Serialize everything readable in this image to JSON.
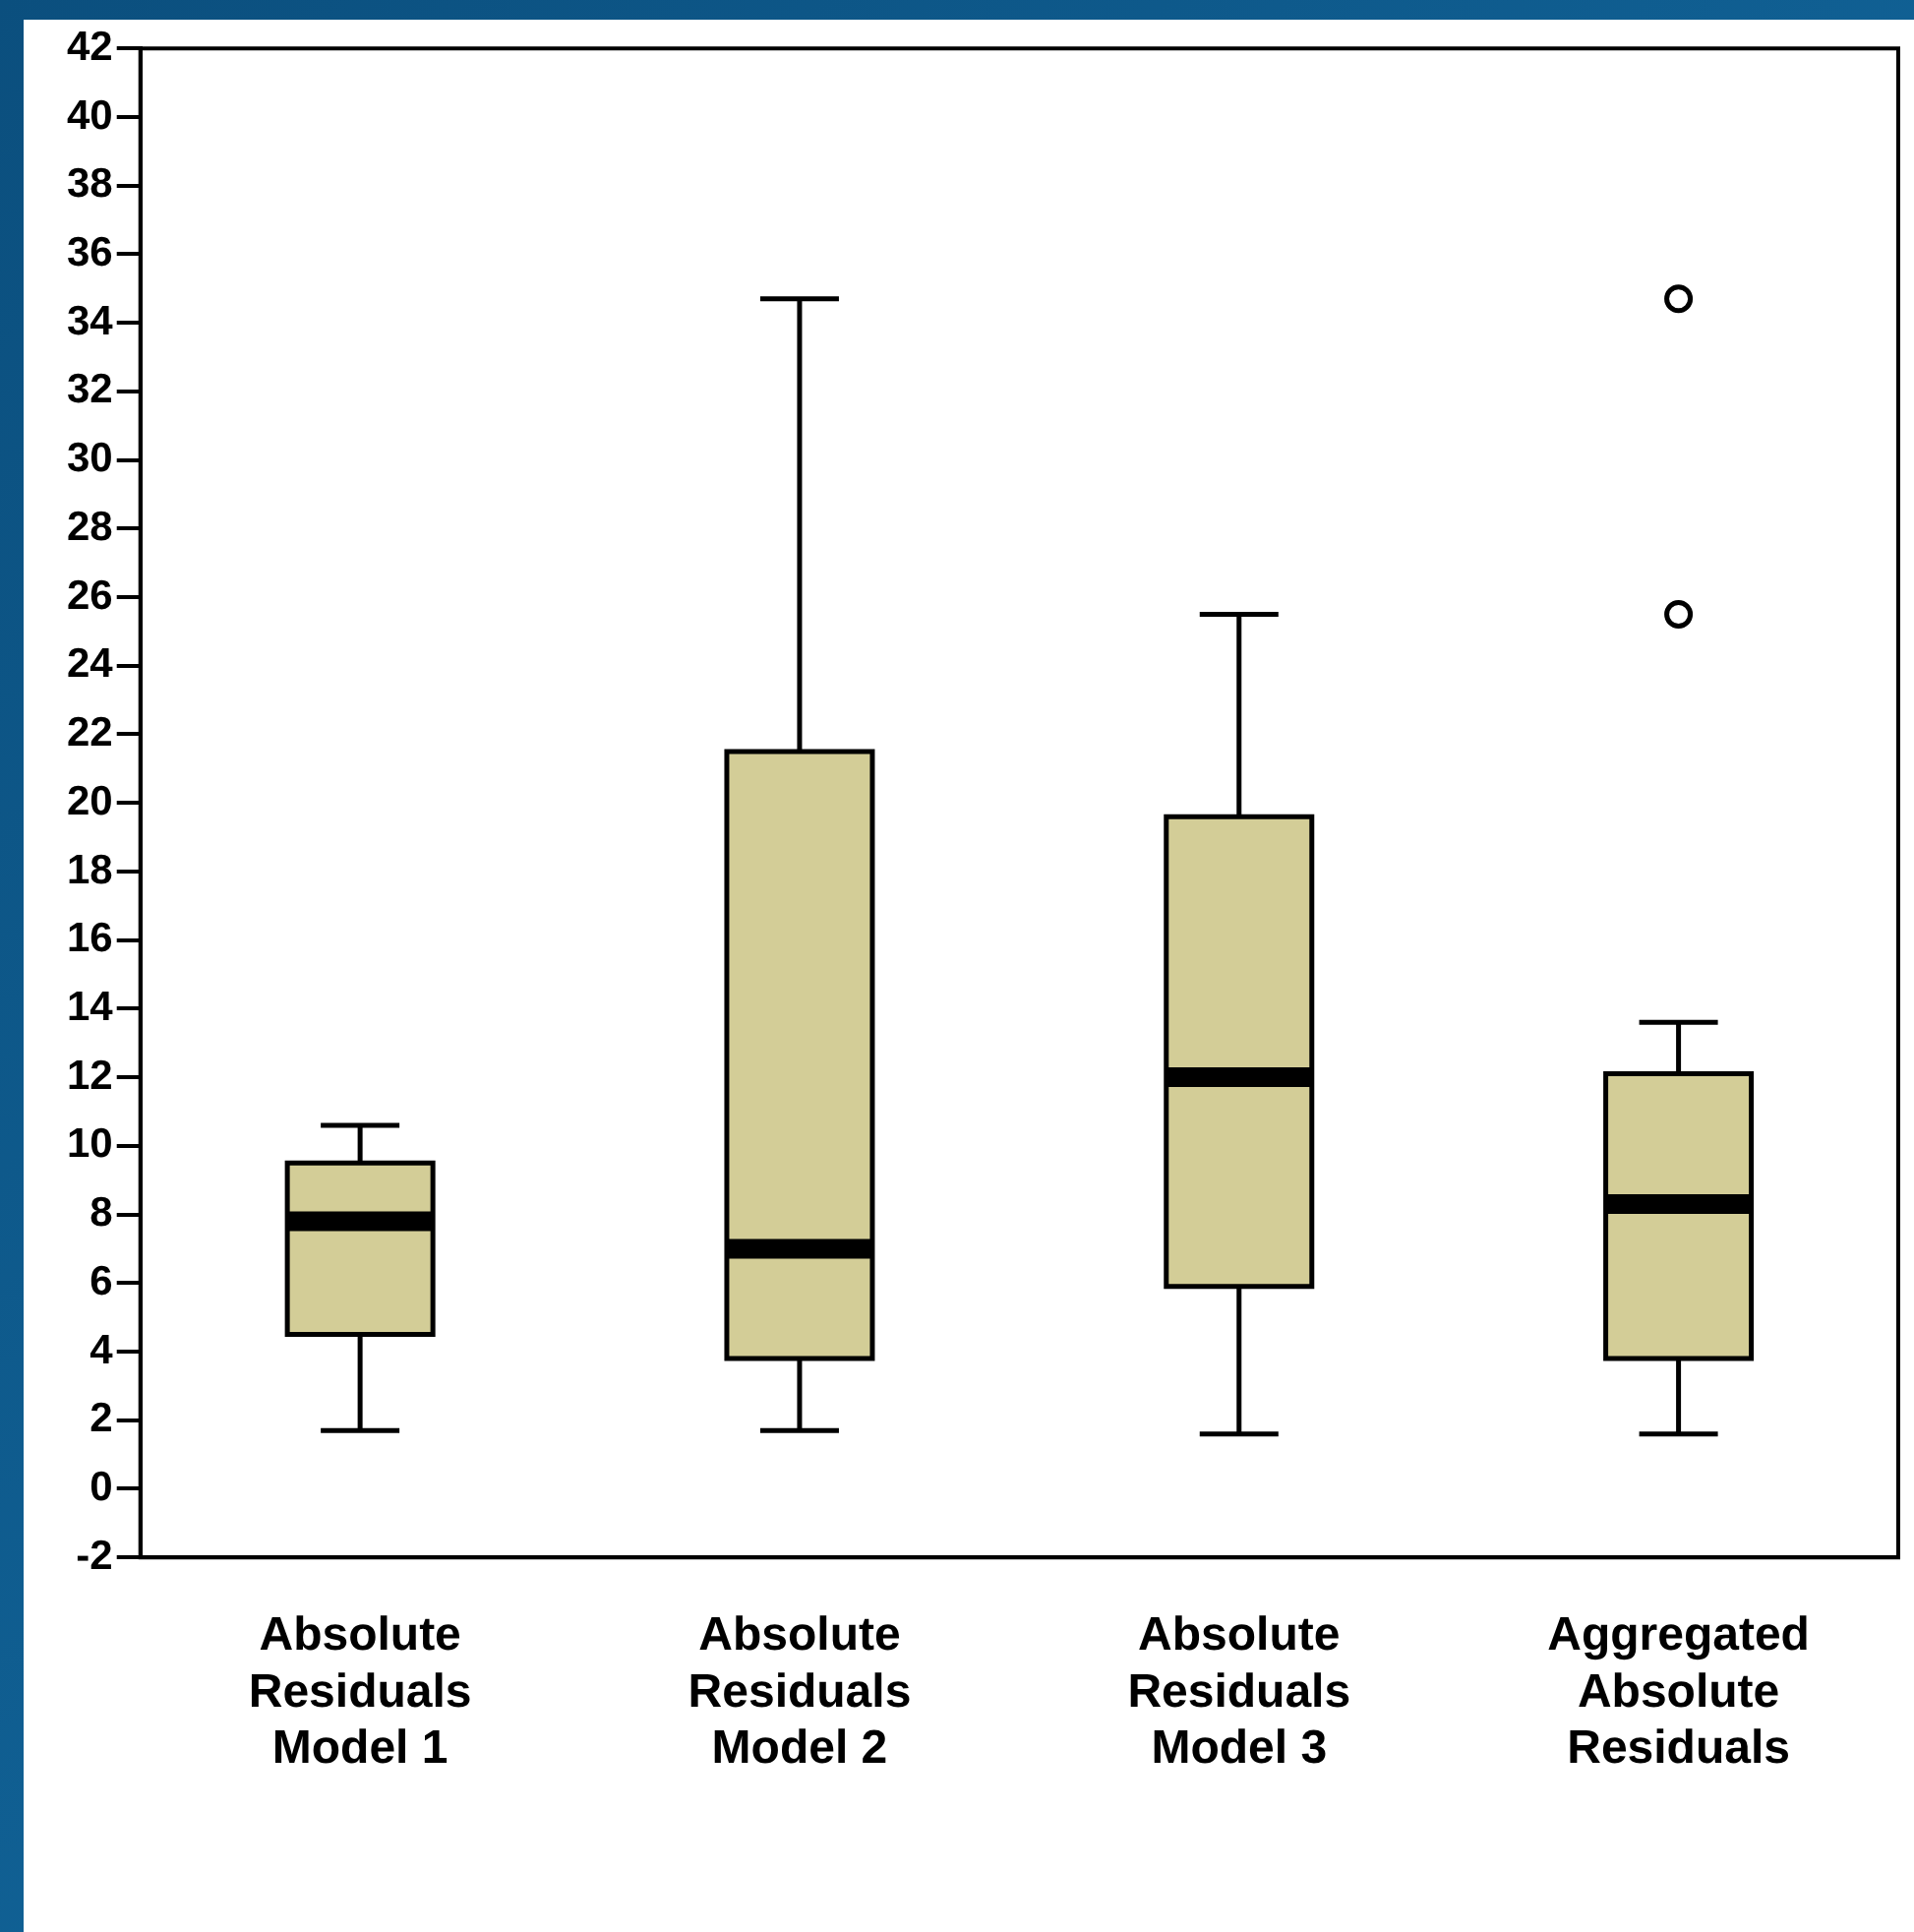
{
  "chart_data": {
    "type": "box",
    "categories": [
      "Absolute Residuals Model 1",
      "Absolute Residuals Model 2",
      "Absolute Residuals Model 3",
      "Aggregated Absolute Residuals"
    ],
    "boxes": [
      {
        "low": 1.7,
        "q1": 4.5,
        "median": 7.8,
        "q3": 9.5,
        "high": 10.6
      },
      {
        "low": 1.7,
        "q1": 3.8,
        "median": 7.0,
        "q3": 21.5,
        "high": 34.7
      },
      {
        "low": 1.6,
        "q1": 5.9,
        "median": 12.0,
        "q3": 19.6,
        "high": 25.5
      },
      {
        "low": 1.6,
        "q1": 3.8,
        "median": 8.3,
        "q3": 12.1,
        "high": 13.6,
        "outliers": [
          25.5,
          34.7
        ]
      }
    ],
    "color": "#d3cd97",
    "ylim": [
      -2,
      42
    ],
    "yticks": [
      -2,
      0,
      2,
      4,
      6,
      8,
      10,
      12,
      14,
      16,
      18,
      20,
      22,
      24,
      26,
      28,
      30,
      32,
      34,
      36,
      38,
      40,
      42
    ],
    "grid": false,
    "legend": false
  }
}
